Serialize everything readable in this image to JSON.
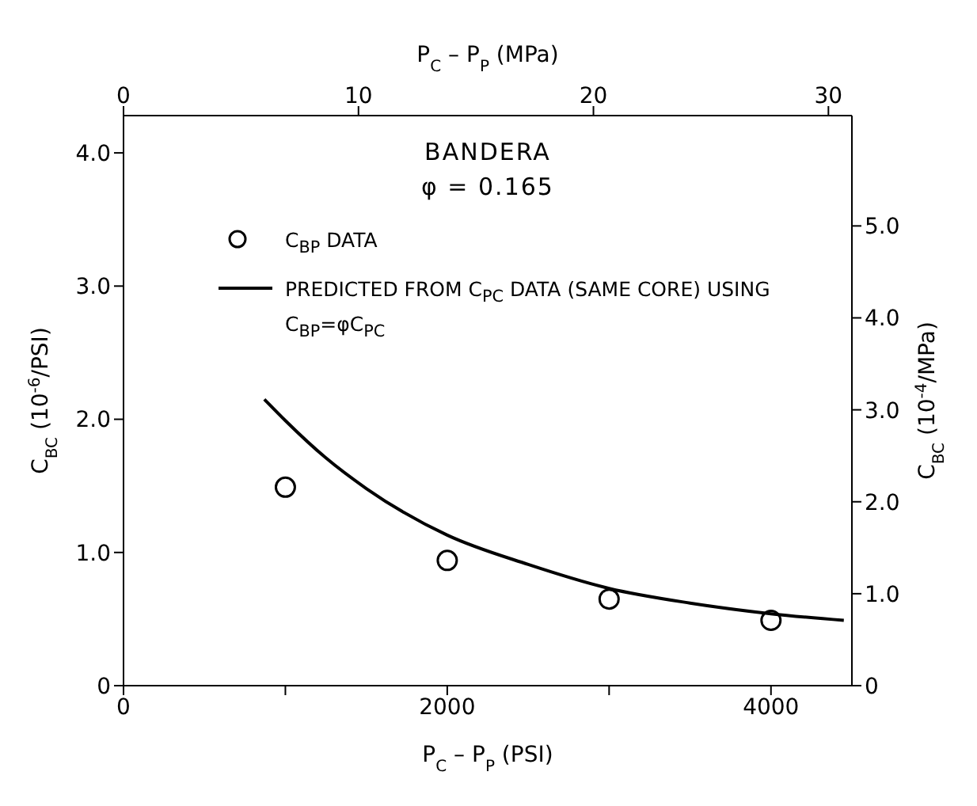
{
  "chart_data": {
    "type": "scatter",
    "annotations": [
      "BANDERA",
      "φ = 0.165"
    ],
    "xlabel": "P$_{C}$ – P$_{P}$ (PSI)",
    "x2label": "P$_{C}$ – P$_{P}$ (MPa)",
    "ylabel": "C$_{BC}$ (10$^{-6}$/PSI)",
    "y2label": "C$_{BC}$ (10$^{-4}$/MPa)",
    "xlim": [
      0,
      4500
    ],
    "xticks": [
      0,
      {
        "value": 1000,
        "label": null
      },
      2000,
      {
        "value": 3000,
        "label": null
      },
      4000
    ],
    "x2lim": [
      0,
      31
    ],
    "x2ticks": [
      0,
      10,
      20,
      30
    ],
    "ylim": [
      0,
      4.28
    ],
    "yticks": [
      0,
      {
        "value": 1,
        "label": "1.0"
      },
      {
        "value": 2,
        "label": "2.0"
      },
      {
        "value": 3,
        "label": "3.0"
      },
      {
        "value": 4,
        "label": "4.0"
      }
    ],
    "y2lim": [
      0,
      6.2
    ],
    "y2ticks": [
      0,
      {
        "value": 1,
        "label": "1.0"
      },
      {
        "value": 2,
        "label": "2.0"
      },
      {
        "value": 3,
        "label": "3.0"
      },
      {
        "value": 4,
        "label": "4.0"
      },
      {
        "value": 5,
        "label": "5.0"
      }
    ],
    "grid": false,
    "legend": "top",
    "series": [
      {
        "name": "C$_{BP}$ DATA",
        "marker": "circle",
        "color": "#000000",
        "x": [
          1000,
          2000,
          3000,
          4000
        ],
        "values": [
          1.49,
          0.94,
          0.65,
          0.49
        ]
      },
      {
        "name": "PREDICTED FROM C$_{PC}$ DATA (SAME CORE) USING C$_{BP}$=φC$_{PC}$",
        "type": "line",
        "marker": "none",
        "line_style": "solid",
        "color": "#000000",
        "x": [
          870,
          1000,
          1250,
          1500,
          2000,
          2500,
          3000,
          3500,
          4000,
          4450
        ],
        "values": [
          2.15,
          1.99,
          1.71,
          1.48,
          1.13,
          0.91,
          0.73,
          0.62,
          0.54,
          0.49
        ]
      }
    ]
  }
}
